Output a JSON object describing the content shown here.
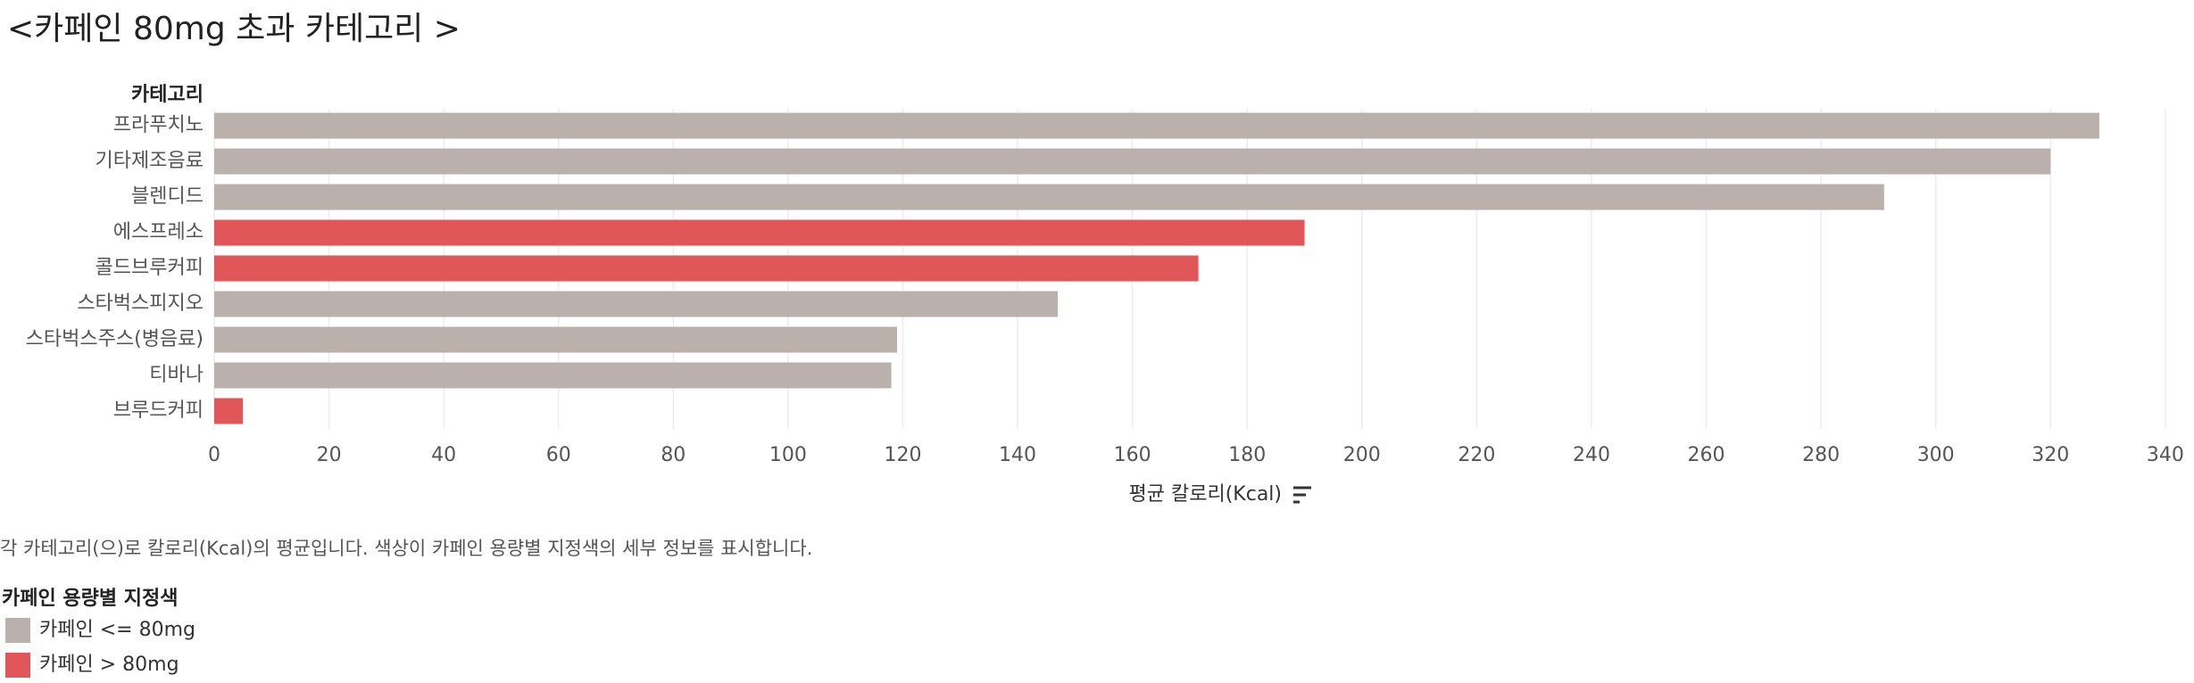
{
  "chart_data": {
    "type": "bar",
    "orientation": "horizontal",
    "title": "<카페인 80mg 초과 카테고리 >",
    "category_header": "카테고리",
    "categories": [
      "프라푸치노",
      "기타제조음료",
      "블렌디드",
      "에스프레소",
      "콜드브루커피",
      "스타벅스피지오",
      "스타벅스주스(병음료)",
      "티바나",
      "브루드커피"
    ],
    "series": [
      {
        "name": "카페인 <= 80mg",
        "color": "#bab0ac",
        "values": [
          328.5,
          320,
          291,
          null,
          null,
          147,
          119,
          118,
          null
        ]
      },
      {
        "name": "카페인 > 80mg",
        "color": "#e15759",
        "values": [
          null,
          null,
          null,
          190,
          171.5,
          null,
          null,
          null,
          5
        ]
      }
    ],
    "xlabel": "평균 칼로리(Kcal)",
    "xlim": [
      0,
      345
    ],
    "xticks": [
      0,
      20,
      40,
      60,
      80,
      100,
      120,
      140,
      160,
      180,
      200,
      220,
      240,
      260,
      280,
      300,
      320,
      340
    ],
    "grid": true,
    "caption": "각 카테고리(으)로 칼로리(Kcal)의 평균입니다. 색상이 카페인 용량별 지정색의 세부 정보를 표시합니다.",
    "legend_title": "카페인 용량별 지정색",
    "legend_position": "bottom-left"
  }
}
